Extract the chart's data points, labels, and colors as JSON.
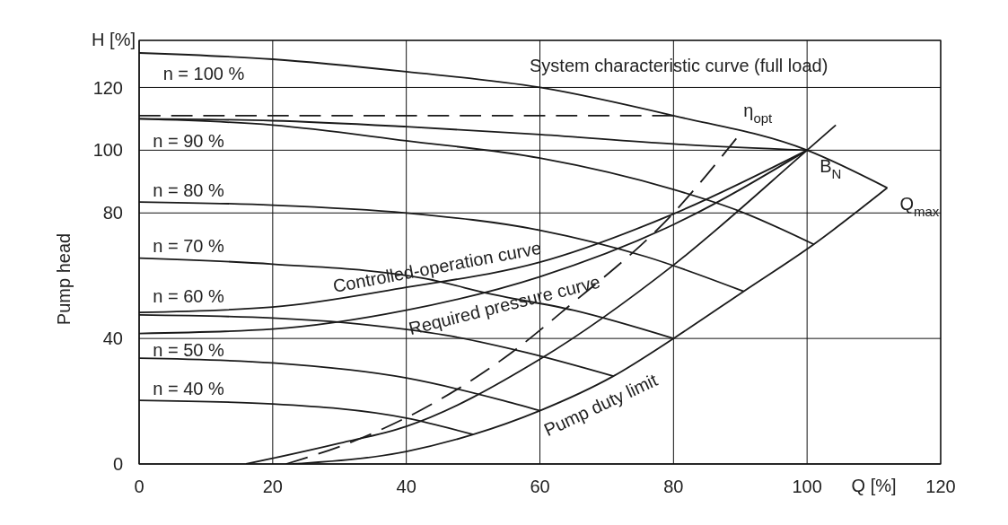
{
  "chart_data": {
    "type": "line",
    "xlabel": "Q [%]",
    "ylabel": "Pump head",
    "xlim": [
      0,
      120
    ],
    "ylim": [
      0,
      135
    ],
    "xticks": [
      0,
      20,
      40,
      60,
      80,
      100,
      120
    ],
    "yticks": [
      0,
      40,
      80,
      100,
      120
    ],
    "grid": true,
    "marker": "none",
    "color": "#1a1a1a",
    "series": [
      {
        "name": "n = 100 %",
        "x": [
          0,
          20,
          40,
          60,
          80,
          100,
          112
        ],
        "values": [
          131,
          129,
          125,
          120,
          111,
          100,
          88
        ]
      },
      {
        "name": "n = 90 %",
        "x": [
          0,
          20,
          40,
          60,
          80,
          90,
          101
        ],
        "values": [
          110,
          108,
          103,
          97.5,
          87.5,
          80.5,
          70
        ]
      },
      {
        "name": "n = 80 %",
        "x": [
          0,
          20,
          40,
          60,
          76,
          90.5
        ],
        "values": [
          83.5,
          82.5,
          80,
          74.5,
          66,
          55
        ]
      },
      {
        "name": "n = 70 %",
        "x": [
          0,
          20,
          43,
          53,
          65,
          80
        ],
        "values": [
          65.6,
          63.7,
          59,
          54,
          49,
          40
        ]
      },
      {
        "name": "n = 60 %",
        "x": [
          0,
          20,
          33,
          46,
          58,
          71
        ],
        "values": [
          47.5,
          46.5,
          44.6,
          41,
          35.5,
          28
        ]
      },
      {
        "name": "n = 50 %",
        "x": [
          0,
          20,
          40,
          54,
          60
        ],
        "values": [
          33.7,
          32.2,
          27.4,
          20.5,
          17
        ]
      },
      {
        "name": "n = 40 %",
        "x": [
          0,
          20,
          40,
          50
        ],
        "values": [
          20.3,
          19.1,
          14.6,
          9.4
        ]
      },
      {
        "name": "Pump duty limit",
        "x": [
          23,
          40,
          50,
          60,
          71,
          80,
          90.5,
          101,
          112
        ],
        "values": [
          0,
          4,
          9.4,
          17,
          28,
          40,
          55,
          70,
          88
        ]
      },
      {
        "name": "Controlled-operation curve",
        "x": [
          0,
          20,
          40,
          60,
          80,
          100
        ],
        "values": [
          48.3,
          50,
          56.3,
          64.3,
          79.7,
          100
        ]
      },
      {
        "name": "Required pressure curve",
        "x": [
          0,
          20,
          40,
          60,
          80,
          100
        ],
        "values": [
          41.6,
          43,
          49,
          59.7,
          76.3,
          100
        ]
      },
      {
        "name": "System characteristic curve (full load)",
        "x": [
          16,
          20,
          30,
          40,
          60,
          80,
          100,
          104.3
        ],
        "values": [
          0,
          1.8,
          6.6,
          12,
          33.4,
          63.4,
          100,
          108
        ]
      },
      {
        "x": [
          0,
          20,
          40,
          60,
          80,
          100
        ],
        "values": [
          110,
          109.4,
          107.5,
          105,
          102,
          100
        ]
      },
      {
        "x": [
          0,
          80
        ],
        "values": [
          111,
          111
        ],
        "line_style": "dashed"
      },
      {
        "name": "η$_{opt}$",
        "x": [
          22,
          33,
          44.6,
          55.7,
          64,
          80,
          89.4
        ],
        "values": [
          0,
          8,
          20,
          35.4,
          49.7,
          80,
          103.7
        ],
        "line_style": "dashed"
      }
    ],
    "annotations": [
      "H [%]",
      {
        "text": "B$_{N}$",
        "x": 100,
        "y": 100
      },
      {
        "text": "Q$_{max}$",
        "x": 112,
        "y": 88
      }
    ]
  }
}
